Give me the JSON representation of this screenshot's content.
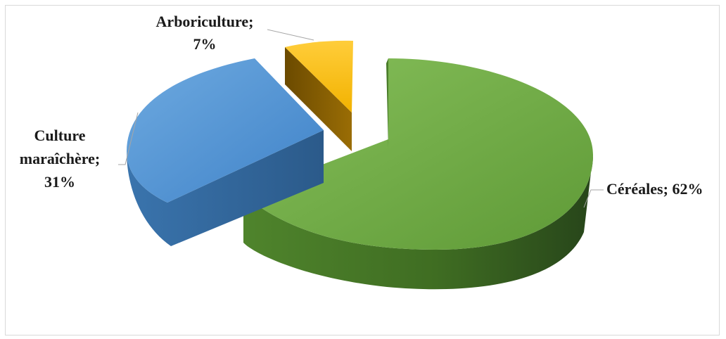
{
  "chart_data": {
    "type": "pie",
    "style": "3d-exploded",
    "title": "",
    "legend": "none",
    "slices": [
      {
        "name": "Céréales",
        "value": 62,
        "color": "#70ad47",
        "label_line1": "Céréales; 62%"
      },
      {
        "name": "Culture maraîchère",
        "value": 31,
        "color": "#5b9bd5",
        "label_line1": "Culture",
        "label_line2": "maraîchère;",
        "label_line3": "31%"
      },
      {
        "name": "Arboriculture",
        "value": 7,
        "color": "#ffc000",
        "label_line1": "Arboriculture;",
        "label_line2": "7%"
      }
    ]
  }
}
